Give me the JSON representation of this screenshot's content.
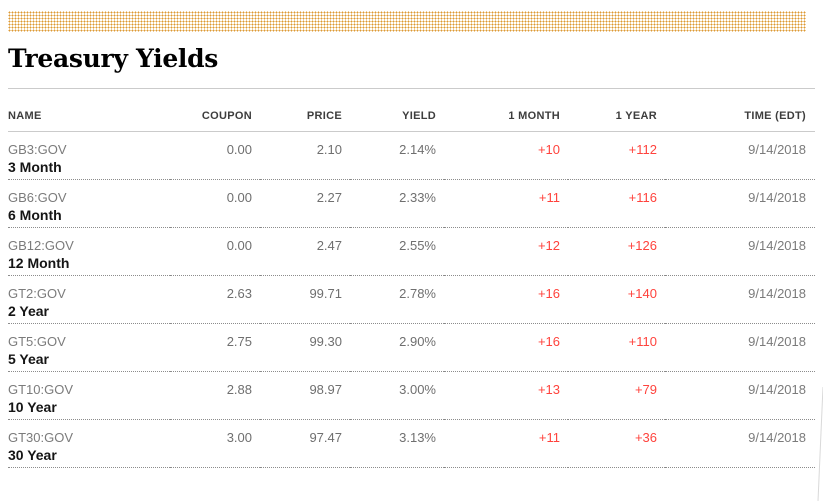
{
  "page": {
    "title": "Treasury Yields"
  },
  "colors": {
    "accent_band_dots": "#dd9933",
    "positive_change": "#ff433d"
  },
  "table": {
    "columns": [
      {
        "key": "name",
        "label": "NAME"
      },
      {
        "key": "coupon",
        "label": "COUPON"
      },
      {
        "key": "price",
        "label": "PRICE"
      },
      {
        "key": "yield",
        "label": "YIELD"
      },
      {
        "key": "month1",
        "label": "1 MONTH"
      },
      {
        "key": "year1",
        "label": "1 YEAR"
      },
      {
        "key": "time",
        "label": "TIME (EDT)"
      }
    ],
    "rows": [
      {
        "ticker": "GB3:GOV",
        "tenor": "3 Month",
        "coupon": "0.00",
        "price": "2.10",
        "yield": "2.14%",
        "month1": "+10",
        "year1": "+112",
        "time": "9/14/2018"
      },
      {
        "ticker": "GB6:GOV",
        "tenor": "6 Month",
        "coupon": "0.00",
        "price": "2.27",
        "yield": "2.33%",
        "month1": "+11",
        "year1": "+116",
        "time": "9/14/2018"
      },
      {
        "ticker": "GB12:GOV",
        "tenor": "12 Month",
        "coupon": "0.00",
        "price": "2.47",
        "yield": "2.55%",
        "month1": "+12",
        "year1": "+126",
        "time": "9/14/2018"
      },
      {
        "ticker": "GT2:GOV",
        "tenor": "2 Year",
        "coupon": "2.63",
        "price": "99.71",
        "yield": "2.78%",
        "month1": "+16",
        "year1": "+140",
        "time": "9/14/2018"
      },
      {
        "ticker": "GT5:GOV",
        "tenor": "5 Year",
        "coupon": "2.75",
        "price": "99.30",
        "yield": "2.90%",
        "month1": "+16",
        "year1": "+110",
        "time": "9/14/2018"
      },
      {
        "ticker": "GT10:GOV",
        "tenor": "10 Year",
        "coupon": "2.88",
        "price": "98.97",
        "yield": "3.00%",
        "month1": "+13",
        "year1": "+79",
        "time": "9/14/2018"
      },
      {
        "ticker": "GT30:GOV",
        "tenor": "30 Year",
        "coupon": "3.00",
        "price": "97.47",
        "yield": "3.13%",
        "month1": "+11",
        "year1": "+36",
        "time": "9/14/2018"
      }
    ]
  }
}
